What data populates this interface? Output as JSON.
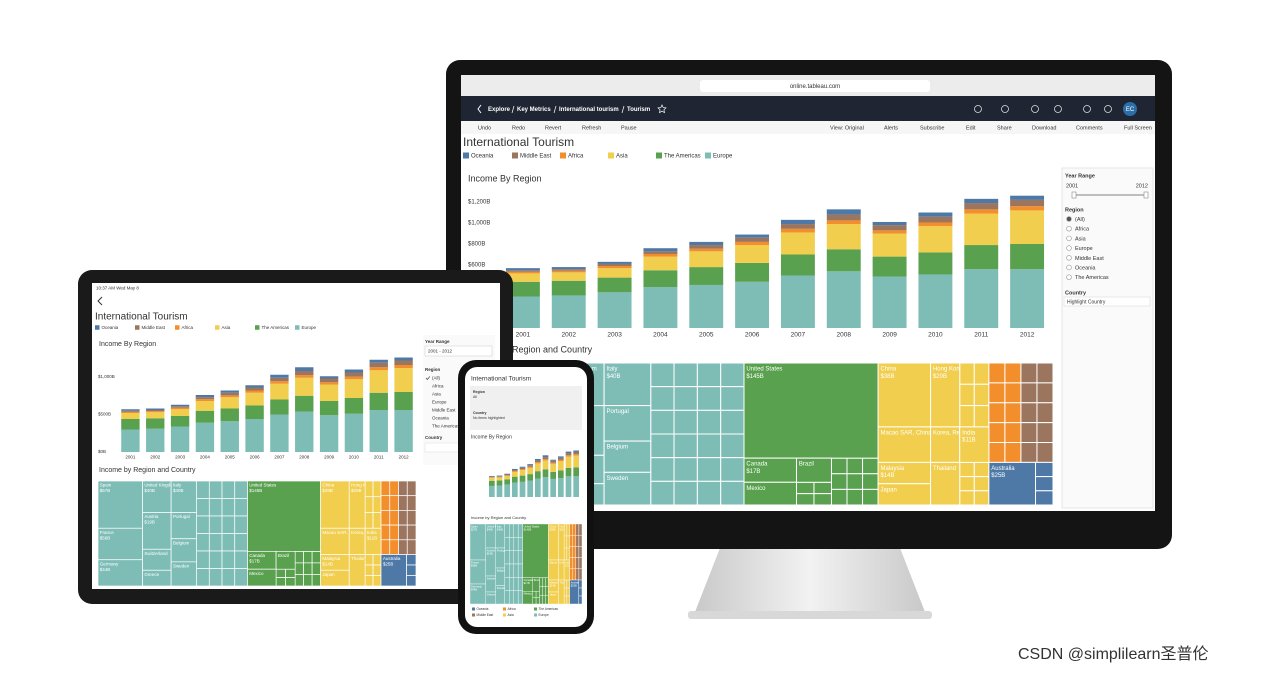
{
  "browser": {
    "url": "online.tableau.com"
  },
  "nav": {
    "breadcrumb": [
      "Explore",
      "Key Metrics",
      "International tourism",
      "Tourism"
    ],
    "avatar": "EC"
  },
  "toolbar": {
    "left": [
      "Undo",
      "Redo",
      "Revert",
      "Refresh",
      "Pause"
    ],
    "right": [
      "View: Original",
      "Alerts",
      "Subscribe",
      "Edit",
      "Share",
      "Download",
      "Comments",
      "Full Screen"
    ]
  },
  "dashboard": {
    "title": "International Tourism",
    "chart_title": "Income By Region",
    "treemap_title": "Income by Region and Country"
  },
  "chart": {
    "type": "bar",
    "stacked": true,
    "categories": [
      "2001",
      "2002",
      "2003",
      "2004",
      "2005",
      "2006",
      "2007",
      "2008",
      "2009",
      "2010",
      "2011",
      "2012"
    ],
    "series": [
      {
        "name": "Oceania",
        "color": "#4e79a7",
        "values": [
          20,
          20,
          20,
          30,
          30,
          30,
          40,
          50,
          30,
          40,
          40,
          40
        ]
      },
      {
        "name": "Middle East",
        "color": "#9c755f",
        "values": [
          15,
          15,
          20,
          25,
          35,
          40,
          45,
          55,
          50,
          55,
          60,
          60
        ]
      },
      {
        "name": "Africa",
        "color": "#f28e2b",
        "values": [
          15,
          15,
          20,
          25,
          25,
          30,
          35,
          35,
          30,
          35,
          40,
          40
        ]
      },
      {
        "name": "Asia",
        "color": "#f1ce4e",
        "values": [
          80,
          80,
          90,
          130,
          150,
          170,
          210,
          240,
          220,
          250,
          300,
          320
        ]
      },
      {
        "name": "The Americas",
        "color": "#59a14f",
        "values": [
          140,
          140,
          140,
          160,
          170,
          180,
          200,
          210,
          190,
          210,
          230,
          240
        ]
      },
      {
        "name": "Europe",
        "color": "#7dbdb6",
        "values": [
          300,
          310,
          340,
          390,
          410,
          440,
          500,
          540,
          490,
          510,
          560,
          560
        ]
      }
    ],
    "ylim": [
      0,
      1300
    ],
    "yticks": [
      {
        "value": 600,
        "label": "$600B"
      },
      {
        "value": 800,
        "label": "$800B"
      },
      {
        "value": 1000,
        "label": "$1,000B"
      },
      {
        "value": 1200,
        "label": "$1,200B"
      }
    ]
  },
  "tablet_chart": {
    "yticks": [
      {
        "value": 0,
        "label": "$0B"
      },
      {
        "value": 500,
        "label": "$500B"
      },
      {
        "value": 1000,
        "label": "$1,000B"
      }
    ]
  },
  "treemap": [
    {
      "name": "Spain",
      "label": "$57B",
      "color": "#7dbdb6"
    },
    {
      "name": "United Kingdom",
      "label": "$40B",
      "color": "#7dbdb6"
    },
    {
      "name": "Italy",
      "label": "$40B",
      "color": "#7dbdb6"
    },
    {
      "name": "France",
      "label": "$56B",
      "color": "#7dbdb6"
    },
    {
      "name": "Germany",
      "label": "$44B",
      "color": "#7dbdb6"
    },
    {
      "name": "Austria",
      "label": "$19B",
      "color": "#7dbdb6"
    },
    {
      "name": "Switzerland",
      "color": "#7dbdb6"
    },
    {
      "name": "Greece",
      "color": "#7dbdb6"
    },
    {
      "name": "Portugal",
      "color": "#7dbdb6"
    },
    {
      "name": "Belgium",
      "color": "#7dbdb6"
    },
    {
      "name": "Sweden",
      "color": "#7dbdb6"
    },
    {
      "name": "United States",
      "label": "$145B",
      "color": "#59a14f"
    },
    {
      "name": "Canada",
      "label": "$17B",
      "color": "#59a14f"
    },
    {
      "name": "Brazil",
      "color": "#59a14f"
    },
    {
      "name": "Mexico",
      "color": "#59a14f"
    },
    {
      "name": "China",
      "label": "$38B",
      "color": "#f1ce4e"
    },
    {
      "name": "Hong Kong SAR, China",
      "label": "$20B",
      "color": "#f1ce4e"
    },
    {
      "name": "Macao SAR, China",
      "color": "#f1ce4e"
    },
    {
      "name": "Korea, Rep.",
      "color": "#f1ce4e"
    },
    {
      "name": "India",
      "label": "$11B",
      "color": "#f1ce4e"
    },
    {
      "name": "Malaysia",
      "label": "$14B",
      "color": "#f1ce4e"
    },
    {
      "name": "Japan",
      "color": "#f1ce4e"
    },
    {
      "name": "Thailand",
      "color": "#f1ce4e"
    },
    {
      "name": "Australia",
      "label": "$25B",
      "color": "#4e79a7"
    }
  ],
  "filters": {
    "year_range": "Year Range",
    "year_start": "2001",
    "year_end": "2012",
    "year_span": "2001 - 2012",
    "region": "Region",
    "region_options": [
      "(All)",
      "Africa",
      "Asia",
      "Europe",
      "Middle East",
      "Oceania",
      "The Americas"
    ],
    "country": "Country",
    "country_placeholder": "Highlight Country"
  },
  "tablet": {
    "status": "10:37 AM  Wed May 8"
  },
  "phone": {
    "region_value": "All",
    "country_empty": "No items highlighted"
  },
  "watermark": "CSDN @simplilearn圣普伦"
}
